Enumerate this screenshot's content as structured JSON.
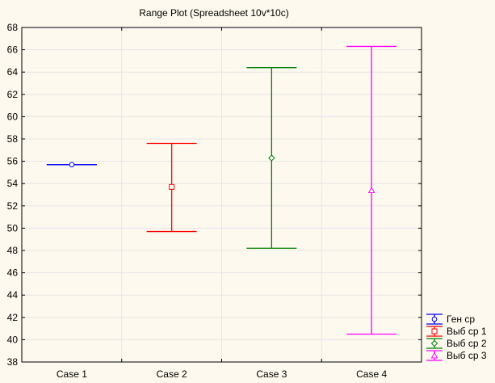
{
  "chart_data": {
    "type": "range",
    "title": "Range Plot (Spreadsheet 10v*10c)",
    "xlabel": "",
    "ylabel": "",
    "ylim": [
      38,
      68
    ],
    "yticks": [
      38,
      40,
      42,
      44,
      46,
      48,
      50,
      52,
      54,
      56,
      58,
      60,
      62,
      64,
      66,
      68
    ],
    "categories": [
      "Case 1",
      "Case 2",
      "Case 3",
      "Case 4"
    ],
    "grid": true,
    "legend_position": "bottom-right",
    "series": [
      {
        "name": "Ген ср",
        "color": "#0000ff",
        "marker": "circle",
        "mean": 55.7,
        "low": 55.7,
        "high": 55.7
      },
      {
        "name": "Выб ср 1",
        "color": "#ff0000",
        "marker": "square",
        "mean": 53.7,
        "low": 49.7,
        "high": 57.6
      },
      {
        "name": "Выб ср 2",
        "color": "#008000",
        "marker": "diamond",
        "mean": 56.3,
        "low": 48.2,
        "high": 64.4
      },
      {
        "name": "Выб ср 3",
        "color": "#ff00ff",
        "marker": "triangle",
        "mean": 53.4,
        "low": 40.5,
        "high": 66.3
      }
    ]
  }
}
